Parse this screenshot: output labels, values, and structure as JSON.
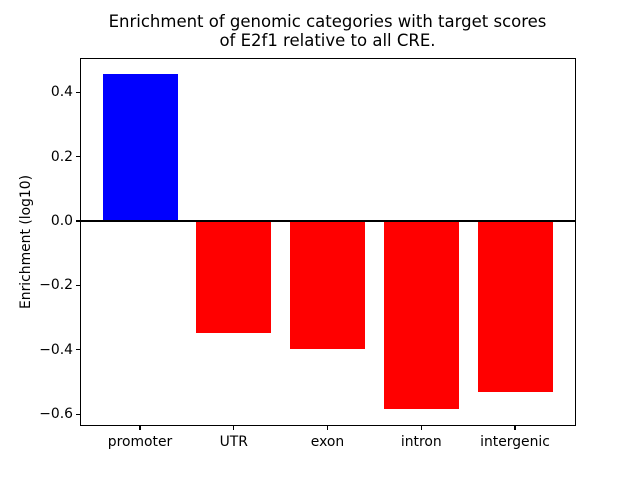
{
  "chart_data": {
    "type": "bar",
    "title_line1": "Enrichment of genomic categories with target scores",
    "title_line2": "of E2f1 relative to all CRE.",
    "ylabel": "Enrichment (log10)",
    "xlabel": "",
    "categories": [
      "promoter",
      "UTR",
      "exon",
      "intron",
      "intergenic"
    ],
    "values": [
      0.455,
      -0.348,
      -0.398,
      -0.585,
      -0.532
    ],
    "bar_colors": [
      "#0000ff",
      "#ff0000",
      "#ff0000",
      "#ff0000",
      "#ff0000"
    ],
    "positive_color": "#0000ff",
    "negative_color": "#ff0000",
    "yticks": [
      {
        "value": 0.4,
        "label": "0.4"
      },
      {
        "value": 0.2,
        "label": "0.2"
      },
      {
        "value": 0.0,
        "label": "0.0"
      },
      {
        "value": -0.2,
        "label": "−0.2"
      },
      {
        "value": -0.4,
        "label": "−0.4"
      },
      {
        "value": -0.6,
        "label": "−0.6"
      }
    ],
    "ylim": [
      -0.635,
      0.506
    ],
    "xlim": [
      -0.64,
      4.64
    ],
    "bar_width": 0.8,
    "zero_line": true,
    "grid": false,
    "legend": null,
    "axis_color": "#000000",
    "background_color": "#ffffff"
  }
}
